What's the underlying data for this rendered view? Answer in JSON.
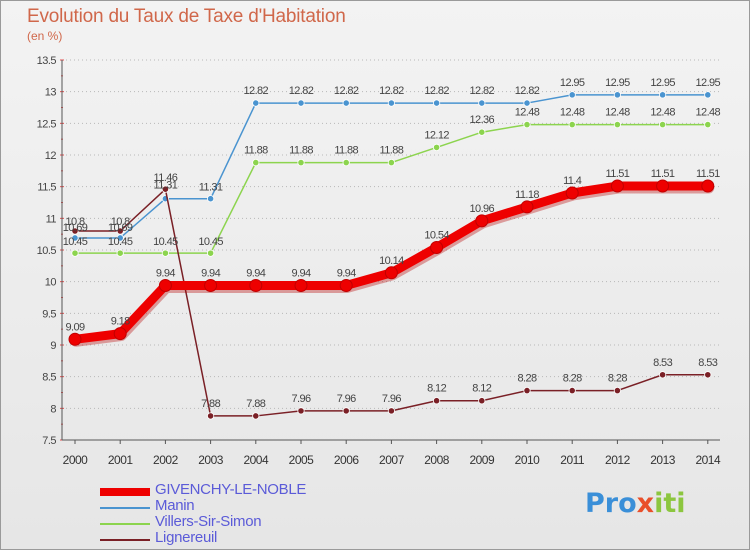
{
  "header": {
    "title": "Evolution du Taux de Taxe d'Habitation",
    "subtitle": "(en %)"
  },
  "logo": {
    "parts": [
      {
        "text": "Pro",
        "color": "#3a8fd8"
      },
      {
        "text": "x",
        "color": "#e94f2a"
      },
      {
        "text": "iti",
        "color": "#8cc63f"
      }
    ]
  },
  "chart_data": {
    "type": "line",
    "title": "Evolution du Taux de Taxe d'Habitation",
    "ylabel": "(en %)",
    "xlabel": "",
    "x": [
      2000,
      2001,
      2002,
      2003,
      2004,
      2005,
      2006,
      2007,
      2008,
      2009,
      2010,
      2011,
      2012,
      2013,
      2014
    ],
    "xticks": [
      "2000",
      "2001",
      "2002",
      "2003",
      "2004",
      "2005",
      "2006",
      "2007",
      "2008",
      "2009",
      "2010",
      "2011",
      "2012",
      "2013",
      "2014"
    ],
    "ylim": [
      7.5,
      13.5
    ],
    "yticks": [
      "7.5",
      "8",
      "8.5",
      "9",
      "9.5",
      "10",
      "10.5",
      "11",
      "11.5",
      "12",
      "12.5",
      "13",
      "13.5"
    ],
    "grid": "horizontal-dotted",
    "legend_position": "bottom-left",
    "series": [
      {
        "name": "GIVENCHY-LE-NOBLE",
        "color": "#ee0000",
        "values": [
          9.09,
          9.18,
          9.94,
          9.94,
          9.94,
          9.94,
          9.94,
          10.14,
          10.54,
          10.96,
          11.18,
          11.4,
          11.51,
          11.51,
          11.51
        ],
        "labels": [
          "9.09",
          "9.18",
          "9.94",
          "9.94",
          "9.94",
          "9.94",
          "9.94",
          "10.14",
          "10.54",
          "10.96",
          "11.18",
          "11.4",
          "11.51",
          "11.51",
          "11.51"
        ]
      },
      {
        "name": "Manin",
        "color": "#4a94d0",
        "values": [
          10.69,
          10.69,
          11.31,
          11.31,
          12.82,
          12.82,
          12.82,
          12.82,
          12.82,
          12.82,
          12.82,
          12.95,
          12.95,
          12.95,
          12.95
        ],
        "labels": [
          "10.69",
          "10.69",
          "11.31",
          "11.31",
          "12.82",
          "12.82",
          "12.82",
          "12.82",
          "12.82",
          "12.82",
          "12.82",
          "12.95",
          "12.95",
          "12.95",
          "12.95"
        ]
      },
      {
        "name": "Villers-Sir-Simon",
        "color": "#8cd44e",
        "values": [
          10.45,
          10.45,
          10.45,
          10.45,
          11.88,
          11.88,
          11.88,
          11.88,
          12.12,
          12.36,
          12.48,
          12.48,
          12.48,
          12.48,
          12.48
        ],
        "labels": [
          "10.45",
          "10.45",
          "10.45",
          "10.45",
          "11.88",
          "11.88",
          "11.88",
          "11.88",
          "12.12",
          "12.36",
          "12.48",
          "12.48",
          "12.48",
          "12.48",
          "12.48"
        ]
      },
      {
        "name": "Lignereuil",
        "color": "#7a2026",
        "values": [
          10.8,
          10.8,
          11.46,
          7.88,
          7.88,
          7.96,
          7.96,
          7.96,
          8.12,
          8.12,
          8.28,
          8.28,
          8.28,
          8.53,
          8.53
        ],
        "labels": [
          "10.8",
          "10.8",
          "11.46",
          "7.88",
          "7.88",
          "7.96",
          "7.96",
          "7.96",
          "8.12",
          "8.12",
          "8.28",
          "8.28",
          "8.28",
          "8.53",
          "8.53"
        ]
      }
    ]
  }
}
